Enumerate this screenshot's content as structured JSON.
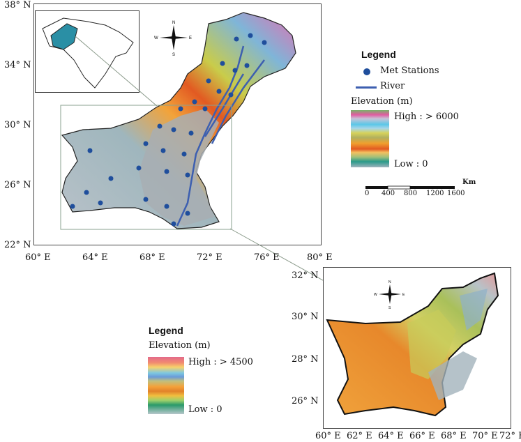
{
  "main_map": {
    "lat_labels": [
      "38° N",
      "34° N",
      "30° N",
      "26° N",
      "22° N"
    ],
    "lon_labels": [
      "60° E",
      "64° E",
      "68° E",
      "72° E",
      "76° E",
      "80° E"
    ]
  },
  "main_legend": {
    "title": "Legend",
    "stations_label": "Met Stations",
    "river_label": "River",
    "elevation_title": "Elevation (m)",
    "high_label": "High : > 6000",
    "low_label": "Low : 0",
    "scale_unit": "Km",
    "scale_ticks": [
      "0",
      "400",
      "800",
      "1200",
      "1600"
    ],
    "colors": {
      "station": "#1f4e9c",
      "river": "#3d5fb0"
    }
  },
  "detail_map": {
    "lat_labels": [
      "32° N",
      "30° N",
      "28° N",
      "26° N"
    ],
    "lon_labels": [
      "60° E",
      "62° E",
      "64° E",
      "66° E",
      "68° E",
      "70° E",
      "72° E"
    ]
  },
  "detail_legend": {
    "title": "Legend",
    "elevation_title": "Elevation (m)",
    "high_label": "High : > 4500",
    "low_label": "Low : 0"
  },
  "compass": {
    "n": "N",
    "s": "S",
    "e": "E",
    "w": "W"
  }
}
